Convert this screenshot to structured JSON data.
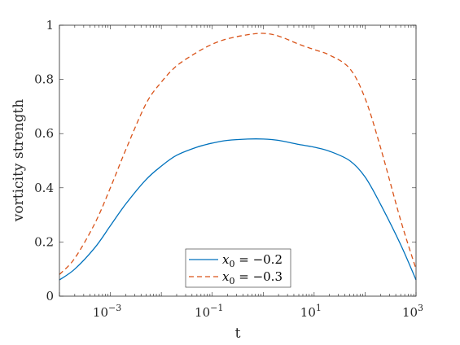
{
  "chart_data": {
    "type": "line",
    "xlabel": "t",
    "ylabel": "vorticity strength",
    "xscale": "log",
    "xlim": [
      0.0001,
      1000
    ],
    "ylim": [
      0,
      1
    ],
    "x_tick_values": [
      0.001,
      0.1,
      10,
      1000
    ],
    "x_tick_labels": [
      {
        "base": "10",
        "exp": "−3"
      },
      {
        "base": "10",
        "exp": "−1"
      },
      {
        "base": "10",
        "exp": "1"
      },
      {
        "base": "10",
        "exp": "3"
      }
    ],
    "y_tick_values": [
      0,
      0.2,
      0.4,
      0.6,
      0.8,
      1
    ],
    "y_tick_labels": [
      "0",
      "0.2",
      "0.4",
      "0.6",
      "0.8",
      "1"
    ],
    "grid": false,
    "legend_position": "bottom-center",
    "x": [
      0.0001,
      0.0002,
      0.0005,
      0.001,
      0.002,
      0.005,
      0.01,
      0.02,
      0.05,
      0.1,
      0.2,
      0.5,
      1,
      2,
      5,
      10,
      20,
      50,
      100,
      200,
      500,
      1000
    ],
    "series": [
      {
        "name": "x0 = −0.2",
        "legend": {
          "var": "x",
          "sub": "0",
          "rest": " = −0.2"
        },
        "color": "#0072BD",
        "style": "solid",
        "values": [
          0.06,
          0.1,
          0.18,
          0.26,
          0.34,
          0.43,
          0.48,
          0.52,
          0.55,
          0.565,
          0.575,
          0.58,
          0.58,
          0.575,
          0.56,
          0.55,
          0.535,
          0.5,
          0.44,
          0.34,
          0.19,
          0.06
        ]
      },
      {
        "name": "x0 = −0.3",
        "legend": {
          "var": "x",
          "sub": "0",
          "rest": " = −0.3"
        },
        "color": "#D95319",
        "style": "dashed",
        "values": [
          0.08,
          0.14,
          0.27,
          0.4,
          0.54,
          0.71,
          0.79,
          0.85,
          0.9,
          0.93,
          0.95,
          0.965,
          0.97,
          0.96,
          0.93,
          0.91,
          0.89,
          0.84,
          0.73,
          0.55,
          0.28,
          0.1
        ]
      }
    ]
  }
}
